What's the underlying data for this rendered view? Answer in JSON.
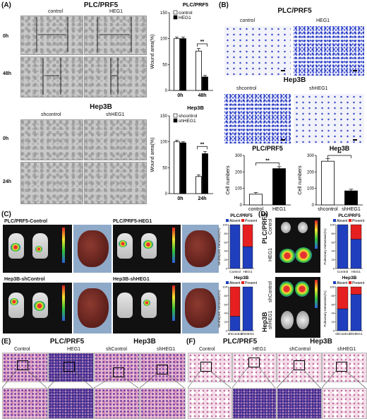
{
  "panels": {
    "A": "(A)",
    "B": "(B)",
    "C": "(C)",
    "D": "(D)",
    "E": "(E)",
    "F": "(F)"
  },
  "A": {
    "plc_title": "PLC/PRF5",
    "hep_title": "Hep3B",
    "plc_cols": [
      "control",
      "HEG1"
    ],
    "hep_cols": [
      "shcontrol",
      "shHEG1"
    ],
    "plc_rows": [
      "0h",
      "48h"
    ],
    "hep_rows": [
      "0h",
      "24h"
    ]
  },
  "B": {
    "plc_title": "PLC/PRF5",
    "hep_title": "Hep3B",
    "plc_cols": [
      "control",
      "HEG1"
    ],
    "hep_cols": [
      "shcontrol",
      "shHEG1"
    ]
  },
  "C": {
    "labels": [
      "PLC/PRF5-Control",
      "PLC/PRF5-HEG1",
      "Hep3B-shControl",
      "Hep3B-shHEG1"
    ],
    "ylabel": "Intrahepatic metastasis(%)"
  },
  "D": {
    "cell_lines": [
      "PLC/PRF5",
      "Hep3B"
    ],
    "rows_plc": [
      "Control",
      "HEG1"
    ],
    "rows_hep": [
      "shControl",
      "shHEG1"
    ],
    "ylabel": "Pulmonary metastasis(%)"
  },
  "E": {
    "groups": [
      "PLC/PRF5",
      "Hep3B"
    ],
    "cols": [
      "Control",
      "HEG1",
      "shControl",
      "shHEG1"
    ]
  },
  "F": {
    "groups": [
      "PLC/PRF5",
      "Hep3B"
    ],
    "cols": [
      "Control",
      "HEG1",
      "shControl",
      "shHEG1"
    ]
  },
  "chart_data": [
    {
      "type": "bar",
      "title": "PLC/PRF5",
      "ylabel": "Wound area(%)",
      "categories": [
        "0h",
        "48h"
      ],
      "series": [
        {
          "name": "control",
          "values": [
            100,
            76
          ],
          "errors": [
            3,
            5
          ]
        },
        {
          "name": "HEG1",
          "values": [
            100,
            26
          ],
          "errors": [
            3,
            3
          ]
        }
      ],
      "ylim": [
        0,
        150
      ],
      "yticks": [
        0,
        50,
        100,
        150
      ],
      "sig": "**",
      "legend": "top-right",
      "colors": {
        "control": "#ffffff",
        "HEG1": "#000000"
      }
    },
    {
      "type": "bar",
      "title": "Hep3B",
      "ylabel": "Wound area(%)",
      "categories": [
        "0h",
        "24h"
      ],
      "series": [
        {
          "name": "shcontrol",
          "values": [
            100,
            33
          ],
          "errors": [
            3,
            3
          ]
        },
        {
          "name": "shHEG1",
          "values": [
            98,
            77
          ],
          "errors": [
            2,
            4
          ]
        }
      ],
      "ylim": [
        0,
        150
      ],
      "yticks": [
        0,
        50,
        100,
        150
      ],
      "sig": "**",
      "legend": "top-right",
      "colors": {
        "shcontrol": "#ffffff",
        "shHEG1": "#000000"
      }
    },
    {
      "type": "bar",
      "title": "PLC/PRF5",
      "ylabel": "Cell numbers",
      "categories": [
        "control",
        "HEG1"
      ],
      "values": [
        65,
        220
      ],
      "errors": [
        10,
        12
      ],
      "colors": [
        "#ffffff",
        "#000000"
      ],
      "ylim": [
        0,
        300
      ],
      "yticks": [
        0,
        100,
        200,
        300
      ],
      "sig": "**"
    },
    {
      "type": "bar",
      "title": "Hep3B",
      "ylabel": "Cell numbers",
      "categories": [
        "shcontrol",
        "shHEG1"
      ],
      "values": [
        265,
        85
      ],
      "errors": [
        15,
        10
      ],
      "colors": [
        "#ffffff",
        "#000000"
      ],
      "ylim": [
        0,
        300
      ],
      "yticks": [
        0,
        100,
        200,
        300
      ],
      "sig": "**"
    },
    {
      "type": "bar",
      "stacked": true,
      "title": "PLC/PRF5",
      "ylabel": "Intrahepatic metastasis(%)",
      "categories": [
        "Control",
        "HEG1"
      ],
      "series": [
        {
          "name": "Absent",
          "values": [
            100,
            50
          ],
          "color": "#1f3fbf"
        },
        {
          "name": "Present",
          "values": [
            0,
            50
          ],
          "color": "#e62020"
        }
      ],
      "ylim": [
        0,
        100
      ],
      "yticks": [
        0,
        20,
        40,
        60,
        80,
        100
      ]
    },
    {
      "type": "bar",
      "stacked": true,
      "title": "Hep3B",
      "ylabel": "Intrahepatic metastasis(%)",
      "categories": [
        "shControl",
        "shHEG1"
      ],
      "series": [
        {
          "name": "Absent",
          "values": [
            33,
            100
          ],
          "color": "#1f3fbf"
        },
        {
          "name": "Present",
          "values": [
            67,
            0
          ],
          "color": "#e62020"
        }
      ],
      "ylim": [
        0,
        100
      ],
      "yticks": [
        0,
        20,
        40,
        60,
        80,
        100
      ]
    },
    {
      "type": "bar",
      "stacked": true,
      "title": "PLC/PRF5",
      "ylabel": "Pulmonary metastasis(%)",
      "categories": [
        "Control",
        "HEG1"
      ],
      "series": [
        {
          "name": "Absent",
          "values": [
            100,
            67
          ],
          "color": "#1f3fbf"
        },
        {
          "name": "Present",
          "values": [
            0,
            33
          ],
          "color": "#e62020"
        }
      ],
      "ylim": [
        0,
        100
      ],
      "yticks": [
        0,
        20,
        40,
        60,
        80,
        100
      ]
    },
    {
      "type": "bar",
      "stacked": true,
      "title": "Hep3B",
      "ylabel": "Pulmonary metastasis(%)",
      "categories": [
        "shControl",
        "shHEG1"
      ],
      "series": [
        {
          "name": "Absent",
          "values": [
            50,
            83
          ],
          "color": "#1f3fbf"
        },
        {
          "name": "Present",
          "values": [
            50,
            17
          ],
          "color": "#e62020"
        }
      ],
      "ylim": [
        0,
        100
      ],
      "yticks": [
        0,
        20,
        40,
        60,
        80,
        100
      ]
    }
  ]
}
